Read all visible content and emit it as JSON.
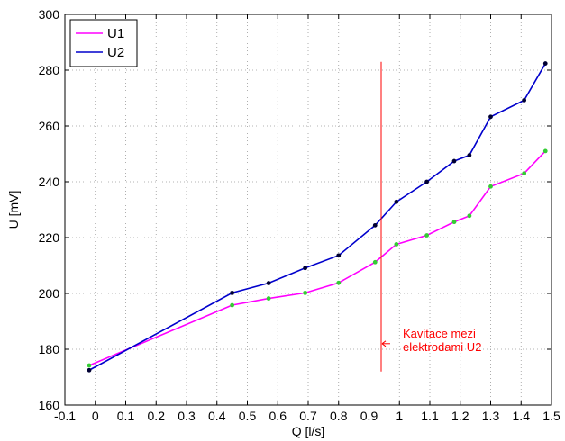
{
  "chart_data": {
    "type": "line",
    "title": "",
    "xlabel": "Q [l/s]",
    "ylabel": "U [mV]",
    "xlim": [
      -0.1,
      1.5
    ],
    "ylim": [
      160,
      300
    ],
    "x_ticks": [
      "-0.1",
      "0",
      "0.1",
      "0.2",
      "0.3",
      "0.4",
      "0.5",
      "0.6",
      "0.7",
      "0.8",
      "0.9",
      "1",
      "1.1",
      "1.2",
      "1.3",
      "1.4",
      "1.5"
    ],
    "y_ticks": [
      "160",
      "180",
      "200",
      "220",
      "240",
      "260",
      "280",
      "300"
    ],
    "grid": true,
    "legend_position": "top-left",
    "series": [
      {
        "name": "U1",
        "color": "#ff00ff",
        "marker_color": "#33cc33",
        "x": [
          -0.02,
          0.45,
          0.57,
          0.69,
          0.8,
          0.92,
          0.99,
          1.09,
          1.18,
          1.23,
          1.3,
          1.41,
          1.48
        ],
        "y": [
          174.2,
          195.8,
          198.2,
          200.2,
          203.8,
          211.2,
          217.6,
          220.8,
          225.6,
          227.8,
          238.3,
          243,
          251
        ]
      },
      {
        "name": "U2",
        "color": "#0000cc",
        "marker_color": "#000033",
        "x": [
          -0.02,
          0.45,
          0.57,
          0.69,
          0.8,
          0.92,
          0.99,
          1.09,
          1.18,
          1.23,
          1.3,
          1.41,
          1.48
        ],
        "y": [
          172.5,
          200.2,
          203.7,
          209.1,
          213.6,
          224.4,
          232.8,
          240,
          247.4,
          249.5,
          263.3,
          269.2,
          282.4
        ]
      }
    ],
    "annotation": {
      "line_lines": [
        "Kavitace mezi",
        "elektrodami U2"
      ],
      "color": "#ff0000",
      "vline_x": 0.94,
      "vline_y": [
        172,
        283
      ],
      "arrow_y": 182
    }
  }
}
